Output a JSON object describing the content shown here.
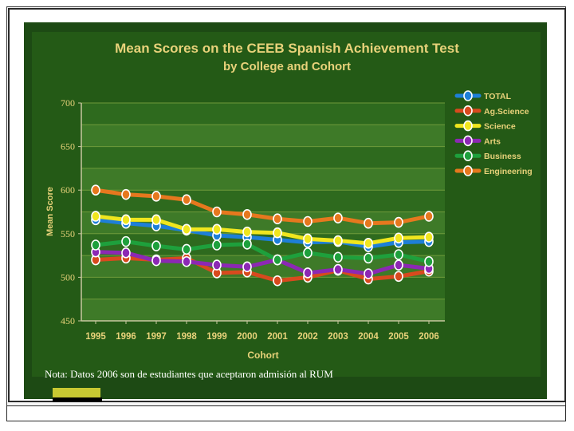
{
  "chart_data": {
    "type": "line",
    "title": "Mean Scores on the CEEB Spanish Achievement Test",
    "subtitle": "by College and Cohort",
    "xlabel": "Cohort",
    "ylabel": "Mean Score",
    "x": [
      "1995",
      "1996",
      "1997",
      "1998",
      "1999",
      "2000",
      "2001",
      "2002",
      "2003",
      "2004",
      "2005",
      "2006"
    ],
    "ylim": [
      450,
      700
    ],
    "yticks": [
      450,
      500,
      550,
      600,
      650,
      700
    ],
    "legend_position": "right",
    "series": [
      {
        "name": "TOTAL",
        "color": "#1e7fd8",
        "values": [
          566,
          562,
          559,
          554,
          548,
          546,
          543,
          540,
          541,
          535,
          540,
          541
        ]
      },
      {
        "name": "Ag.Science",
        "color": "#d84a1e",
        "values": [
          520,
          522,
          520,
          522,
          505,
          506,
          496,
          500,
          508,
          498,
          501,
          507
        ]
      },
      {
        "name": "Science",
        "color": "#f0e61e",
        "values": [
          570,
          566,
          566,
          555,
          555,
          552,
          551,
          544,
          542,
          539,
          545,
          546
        ]
      },
      {
        "name": "Arts",
        "color": "#8c28b4",
        "values": [
          529,
          528,
          519,
          518,
          514,
          512,
          520,
          505,
          509,
          504,
          514,
          510
        ]
      },
      {
        "name": "Business",
        "color": "#1ea03c",
        "values": [
          537,
          541,
          536,
          532,
          537,
          538,
          520,
          528,
          523,
          522,
          526,
          518
        ]
      },
      {
        "name": "Engineering",
        "color": "#e6781e",
        "values": [
          600,
          595,
          593,
          589,
          575,
          572,
          567,
          564,
          568,
          562,
          563,
          570
        ]
      }
    ]
  },
  "note": "Nota:  Datos 2006 son de estudiantes que aceptaron admisión al RUM"
}
